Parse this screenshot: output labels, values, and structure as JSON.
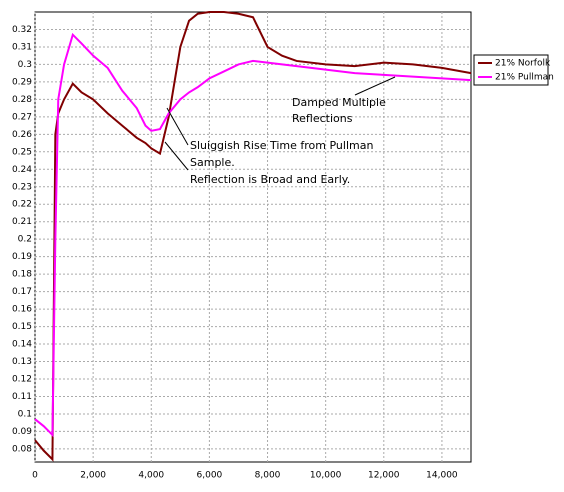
{
  "chart_data": {
    "type": "line",
    "xlim": [
      0,
      15000
    ],
    "xticks": [
      0,
      {
        "value": 2000,
        "label": "2,000"
      },
      {
        "value": 4000,
        "label": "4,000"
      },
      {
        "value": 6000,
        "label": "6,000"
      },
      {
        "value": 8000,
        "label": "8,000"
      },
      {
        "value": 10000,
        "label": "10,000"
      },
      {
        "value": 12000,
        "label": "12,000"
      },
      {
        "value": 14000,
        "label": "14,000"
      }
    ],
    "ylim": [
      0.0725,
      0.33
    ],
    "yticks": [
      0.08,
      0.09,
      0.1,
      0.11,
      0.12,
      0.13,
      0.14,
      0.15,
      0.16,
      0.17,
      0.18,
      0.19,
      0.2,
      0.21,
      0.22,
      0.23,
      0.24,
      0.25,
      0.26,
      0.27,
      0.28,
      0.29,
      0.3,
      0.31,
      0.32
    ],
    "grid": true,
    "legend": "right",
    "x": [
      0,
      300,
      600,
      700,
      800,
      1000,
      1300,
      1600,
      2000,
      2500,
      3000,
      3500,
      3800,
      4000,
      4300,
      4600,
      4800,
      5000,
      5300,
      5600,
      6000,
      6500,
      7000,
      7500,
      8000,
      8500,
      9000,
      10000,
      11000,
      12000,
      13000,
      14000,
      15000
    ],
    "series": [
      {
        "name": "21% Norfolk",
        "color": "#800000",
        "values": [
          0.085,
          0.079,
          0.074,
          0.26,
          0.272,
          0.28,
          0.289,
          0.284,
          0.28,
          0.272,
          0.265,
          0.258,
          0.255,
          0.252,
          0.249,
          0.27,
          0.29,
          0.31,
          0.325,
          0.329,
          0.33,
          0.33,
          0.329,
          0.327,
          0.31,
          0.305,
          0.302,
          0.3,
          0.299,
          0.301,
          0.3,
          0.298,
          0.295
        ]
      },
      {
        "name": "21% Pullman",
        "color": "#ff00ff",
        "values": [
          0.097,
          0.093,
          0.088,
          0.2,
          0.28,
          0.3,
          0.317,
          0.312,
          0.305,
          0.298,
          0.285,
          0.275,
          0.265,
          0.262,
          0.263,
          0.272,
          0.276,
          0.28,
          0.284,
          0.287,
          0.292,
          0.296,
          0.3,
          0.302,
          0.301,
          0.3,
          0.299,
          0.297,
          0.295,
          0.294,
          0.293,
          0.292,
          0.291
        ]
      }
    ],
    "annotations": [
      {
        "lines": [
          "Damped Multiple",
          "Reflections"
        ]
      },
      {
        "lines": [
          "Sluiggish Rise Time from Pullman",
          "Sample.",
          "Reflection is Broad and Early."
        ]
      }
    ]
  }
}
